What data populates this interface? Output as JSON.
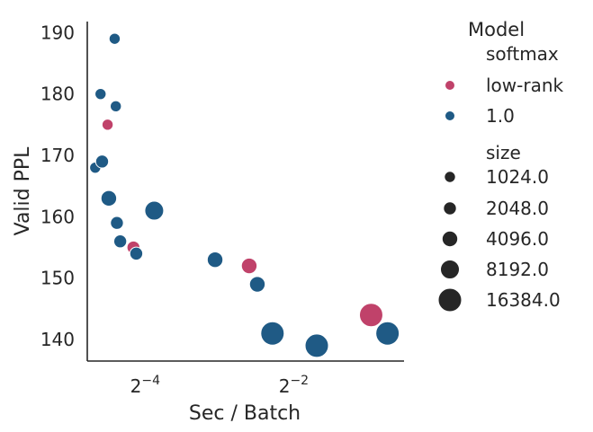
{
  "chart_data": {
    "type": "scatter",
    "title": "",
    "xlabel": "Sec / Batch",
    "ylabel": "Valid PPL",
    "x_scale": "log2",
    "xlim": [
      0.0364,
      0.7
    ],
    "ylim": [
      136.5,
      191.8
    ],
    "x_ticks": [
      {
        "value": 0.0625,
        "base": "2",
        "exp": "−4"
      },
      {
        "value": 0.25,
        "base": "2",
        "exp": "−2"
      }
    ],
    "y_ticks": [
      140,
      150,
      160,
      170,
      180,
      190
    ],
    "grid": false,
    "legend": {
      "placement": "right",
      "title": "Model",
      "hue_entries": [
        {
          "label": "softmax",
          "color": ""
        },
        {
          "label": "low-rank",
          "color": "#c0426a"
        },
        {
          "label": "1.0",
          "color": "#1f5a85"
        }
      ],
      "size_title": "size",
      "size_entries": [
        "1024.0",
        "2048.0",
        "4096.0",
        "8192.0",
        "16384.0"
      ]
    },
    "series": [
      {
        "name": "low-rank",
        "color": "#c0426a",
        "points": [
          {
            "x": 0.044,
            "y": 175,
            "size": 1024
          },
          {
            "x": 0.056,
            "y": 155,
            "size": 2048
          },
          {
            "x": 0.165,
            "y": 152,
            "size": 4096
          },
          {
            "x": 0.515,
            "y": 144,
            "size": 16384
          }
        ]
      },
      {
        "name": "1.0",
        "color": "#1f5a85",
        "points": [
          {
            "x": 0.047,
            "y": 189,
            "size": 1024
          },
          {
            "x": 0.0412,
            "y": 180,
            "size": 1024
          },
          {
            "x": 0.0475,
            "y": 178,
            "size": 1024
          },
          {
            "x": 0.0392,
            "y": 168,
            "size": 1024
          },
          {
            "x": 0.0418,
            "y": 169,
            "size": 2048
          },
          {
            "x": 0.0445,
            "y": 163,
            "size": 4096
          },
          {
            "x": 0.048,
            "y": 159,
            "size": 2048
          },
          {
            "x": 0.0495,
            "y": 156,
            "size": 2048
          },
          {
            "x": 0.0575,
            "y": 154,
            "size": 2048
          },
          {
            "x": 0.068,
            "y": 161,
            "size": 8192
          },
          {
            "x": 0.12,
            "y": 153,
            "size": 4096
          },
          {
            "x": 0.178,
            "y": 149,
            "size": 4096
          },
          {
            "x": 0.205,
            "y": 141,
            "size": 16384
          },
          {
            "x": 0.31,
            "y": 139,
            "size": 16384
          },
          {
            "x": 0.6,
            "y": 141,
            "size": 16384
          }
        ]
      }
    ]
  }
}
